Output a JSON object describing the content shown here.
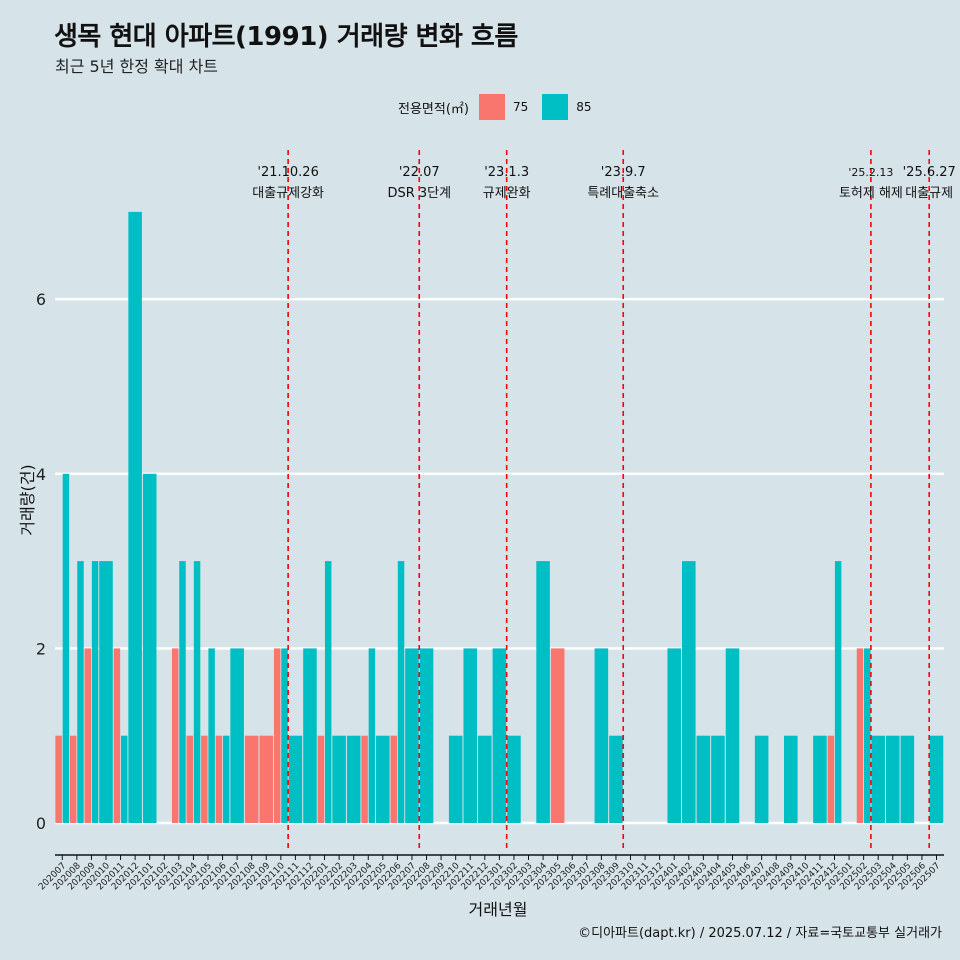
{
  "title": "생목 현대 아파트(1991) 거래량 변화 흐름",
  "subtitle": "최근 5년 한정 확대 차트",
  "caption": "©디아파트(dapt.kr) / 2025.07.12 / 자료=국토교통부 실거래가",
  "legend": {
    "title": "전용면적(㎡)",
    "items": [
      {
        "label": "75",
        "color": "#f8766d"
      },
      {
        "label": "85",
        "color": "#00bfc4"
      }
    ]
  },
  "chart_data": {
    "type": "bar",
    "xlabel": "거래년월",
    "ylabel": "거래량(건)",
    "ylim": [
      -0.3,
      7.5
    ],
    "yticks": [
      0,
      2,
      4,
      6
    ],
    "grid": true,
    "categories": [
      "202007",
      "202008",
      "202009",
      "202010",
      "202011",
      "202012",
      "202101",
      "202102",
      "202103",
      "202104",
      "202105",
      "202106",
      "202107",
      "202108",
      "202109",
      "202110",
      "202111",
      "202112",
      "202201",
      "202202",
      "202203",
      "202204",
      "202205",
      "202206",
      "202207",
      "202208",
      "202209",
      "202210",
      "202211",
      "202212",
      "202301",
      "202302",
      "202303",
      "202304",
      "202305",
      "202306",
      "202307",
      "202308",
      "202309",
      "202310",
      "202311",
      "202312",
      "202401",
      "202402",
      "202403",
      "202404",
      "202405",
      "202406",
      "202407",
      "202408",
      "202409",
      "202410",
      "202411",
      "202412",
      "202501",
      "202502",
      "202503",
      "202504",
      "202505",
      "202506",
      "202507"
    ],
    "series": [
      {
        "name": "75",
        "color": "#f8766d",
        "values": [
          1,
          1,
          2,
          0,
          2,
          0,
          0,
          0,
          2,
          1,
          1,
          1,
          0,
          1,
          1,
          2,
          0,
          0,
          1,
          0,
          0,
          1,
          0,
          1,
          0,
          0,
          0,
          0,
          0,
          0,
          0,
          0,
          0,
          0,
          2,
          0,
          0,
          0,
          0,
          0,
          0,
          0,
          0,
          0,
          0,
          0,
          0,
          0,
          0,
          0,
          0,
          0,
          0,
          1,
          0,
          2,
          0,
          0,
          0,
          0,
          0
        ]
      },
      {
        "name": "85",
        "color": "#00bfc4",
        "values": [
          4,
          3,
          3,
          3,
          1,
          7,
          4,
          0,
          3,
          3,
          2,
          1,
          2,
          0,
          0,
          2,
          1,
          2,
          3,
          1,
          1,
          2,
          1,
          3,
          2,
          2,
          0,
          1,
          2,
          1,
          2,
          1,
          0,
          3,
          0,
          0,
          0,
          2,
          1,
          0,
          0,
          0,
          2,
          3,
          1,
          1,
          2,
          0,
          1,
          0,
          1,
          0,
          1,
          3,
          0,
          2,
          1,
          1,
          1,
          0,
          1
        ]
      }
    ],
    "events": [
      {
        "date": "'21.10.26",
        "label": "대출규제강화",
        "after_index": 15
      },
      {
        "date": "'22.07",
        "label": "DSR 3단계",
        "after_index": 24
      },
      {
        "date": "'23.1.3",
        "label": "규제완화",
        "after_index": 30
      },
      {
        "date": "'23.9.7",
        "label": "특례대출축소",
        "after_index": 38
      },
      {
        "date": "'25.2.13",
        "label": "토허제 해제",
        "after_index": 55
      },
      {
        "date": "'25.6.27",
        "label": "대출규제",
        "after_index": 59
      }
    ]
  }
}
